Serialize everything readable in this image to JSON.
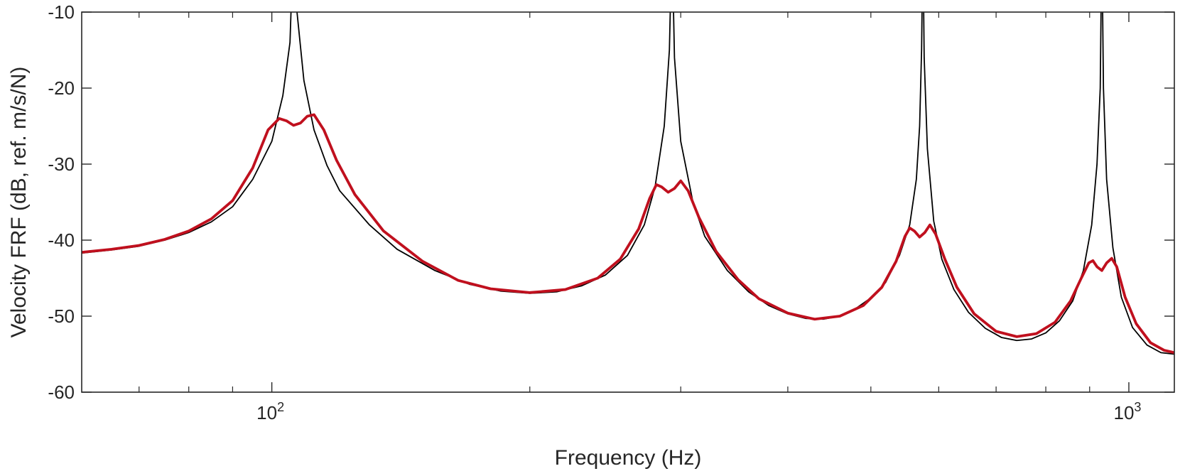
{
  "chart_data": {
    "type": "line",
    "title": "",
    "xlabel": "Frequency (Hz)",
    "ylabel": "Velocity FRF (dB, ref. m/s/N)",
    "xscale": "log",
    "xlim": [
      60,
      1130
    ],
    "ylim": [
      -60,
      -10
    ],
    "grid": false,
    "legend": "none",
    "x_ticks": [
      {
        "value": 100,
        "base": "10",
        "exp": "2"
      },
      {
        "value": 1000,
        "base": "10",
        "exp": "3"
      }
    ],
    "x_minor_ticks": [
      70,
      80,
      90,
      200,
      300,
      400,
      500,
      600,
      700,
      800,
      900
    ],
    "y_ticks": [
      {
        "value": -60,
        "label": "-60"
      },
      {
        "value": -50,
        "label": "-50"
      },
      {
        "value": -40,
        "label": "-40"
      },
      {
        "value": -30,
        "label": "-30"
      },
      {
        "value": -20,
        "label": "-20"
      },
      {
        "value": -10,
        "label": "-10"
      }
    ],
    "series": [
      {
        "color": "#000000",
        "points": [
          [
            60,
            -41.7
          ],
          [
            65,
            -41.3
          ],
          [
            70,
            -40.8
          ],
          [
            75,
            -40.0
          ],
          [
            80,
            -39.0
          ],
          [
            85,
            -37.6
          ],
          [
            90,
            -35.6
          ],
          [
            95,
            -32.0
          ],
          [
            100,
            -27.0
          ],
          [
            103,
            -21.0
          ],
          [
            105,
            -14.0
          ],
          [
            106,
            0
          ],
          [
            107,
            -10.0
          ],
          [
            109,
            -19.0
          ],
          [
            112,
            -25.5
          ],
          [
            116,
            -30.2
          ],
          [
            120,
            -33.5
          ],
          [
            130,
            -38.0
          ],
          [
            140,
            -41.2
          ],
          [
            155,
            -44.0
          ],
          [
            170,
            -45.8
          ],
          [
            185,
            -46.7
          ],
          [
            200,
            -47.0
          ],
          [
            215,
            -46.8
          ],
          [
            230,
            -46.0
          ],
          [
            245,
            -44.6
          ],
          [
            260,
            -42.0
          ],
          [
            272,
            -38.0
          ],
          [
            280,
            -33.0
          ],
          [
            287,
            -25.0
          ],
          [
            291,
            -15.0
          ],
          [
            293,
            0
          ],
          [
            295,
            -16.0
          ],
          [
            300,
            -27.0
          ],
          [
            310,
            -35.0
          ],
          [
            320,
            -39.5
          ],
          [
            340,
            -44.0
          ],
          [
            360,
            -46.8
          ],
          [
            380,
            -48.6
          ],
          [
            400,
            -49.7
          ],
          [
            420,
            -50.3
          ],
          [
            440,
            -50.4
          ],
          [
            460,
            -50.0
          ],
          [
            480,
            -49.0
          ],
          [
            500,
            -47.6
          ],
          [
            520,
            -45.6
          ],
          [
            540,
            -42.0
          ],
          [
            555,
            -38.0
          ],
          [
            565,
            -32.0
          ],
          [
            570,
            -25.0
          ],
          [
            573,
            -15.0
          ],
          [
            575,
            0
          ],
          [
            577,
            -16.0
          ],
          [
            582,
            -28.0
          ],
          [
            592,
            -37.5
          ],
          [
            605,
            -42.5
          ],
          [
            625,
            -46.5
          ],
          [
            650,
            -49.5
          ],
          [
            680,
            -51.6
          ],
          [
            710,
            -52.8
          ],
          [
            740,
            -53.2
          ],
          [
            770,
            -53.0
          ],
          [
            800,
            -52.2
          ],
          [
            830,
            -50.6
          ],
          [
            860,
            -48.0
          ],
          [
            885,
            -44.0
          ],
          [
            905,
            -38.0
          ],
          [
            918,
            -30.0
          ],
          [
            926,
            -20.0
          ],
          [
            930,
            0
          ],
          [
            934,
            -20.0
          ],
          [
            942,
            -32.0
          ],
          [
            958,
            -41.0
          ],
          [
            980,
            -47.5
          ],
          [
            1010,
            -51.5
          ],
          [
            1050,
            -53.8
          ],
          [
            1090,
            -54.8
          ],
          [
            1130,
            -55.0
          ]
        ]
      },
      {
        "color": "#c0101e",
        "points": [
          [
            60,
            -41.6
          ],
          [
            65,
            -41.2
          ],
          [
            70,
            -40.7
          ],
          [
            75,
            -39.9
          ],
          [
            80,
            -38.8
          ],
          [
            85,
            -37.2
          ],
          [
            90,
            -34.8
          ],
          [
            95,
            -30.5
          ],
          [
            99,
            -25.5
          ],
          [
            102,
            -24.0
          ],
          [
            104,
            -24.3
          ],
          [
            106,
            -24.9
          ],
          [
            108,
            -24.6
          ],
          [
            110,
            -23.7
          ],
          [
            112,
            -23.5
          ],
          [
            115,
            -25.5
          ],
          [
            119,
            -29.5
          ],
          [
            125,
            -34.0
          ],
          [
            135,
            -38.8
          ],
          [
            150,
            -42.8
          ],
          [
            165,
            -45.3
          ],
          [
            180,
            -46.4
          ],
          [
            200,
            -46.9
          ],
          [
            220,
            -46.5
          ],
          [
            240,
            -45.0
          ],
          [
            255,
            -42.5
          ],
          [
            268,
            -38.5
          ],
          [
            276,
            -34.5
          ],
          [
            281,
            -32.7
          ],
          [
            285,
            -33.0
          ],
          [
            290,
            -33.7
          ],
          [
            295,
            -33.2
          ],
          [
            300,
            -32.2
          ],
          [
            306,
            -33.5
          ],
          [
            315,
            -37.0
          ],
          [
            330,
            -41.5
          ],
          [
            350,
            -45.2
          ],
          [
            370,
            -47.7
          ],
          [
            400,
            -49.6
          ],
          [
            430,
            -50.4
          ],
          [
            460,
            -50.0
          ],
          [
            490,
            -48.6
          ],
          [
            515,
            -46.2
          ],
          [
            535,
            -42.8
          ],
          [
            548,
            -39.5
          ],
          [
            555,
            -38.4
          ],
          [
            562,
            -38.8
          ],
          [
            570,
            -39.6
          ],
          [
            578,
            -39.0
          ],
          [
            586,
            -38.0
          ],
          [
            595,
            -39.2
          ],
          [
            610,
            -42.5
          ],
          [
            630,
            -46.2
          ],
          [
            660,
            -49.7
          ],
          [
            700,
            -52.0
          ],
          [
            740,
            -52.7
          ],
          [
            780,
            -52.3
          ],
          [
            820,
            -50.8
          ],
          [
            855,
            -48.0
          ],
          [
            880,
            -45.0
          ],
          [
            898,
            -43.0
          ],
          [
            908,
            -42.7
          ],
          [
            918,
            -43.5
          ],
          [
            930,
            -44.0
          ],
          [
            942,
            -43.0
          ],
          [
            955,
            -42.4
          ],
          [
            968,
            -43.5
          ],
          [
            990,
            -47.5
          ],
          [
            1020,
            -51.0
          ],
          [
            1060,
            -53.5
          ],
          [
            1100,
            -54.5
          ],
          [
            1130,
            -54.8
          ]
        ]
      }
    ]
  }
}
